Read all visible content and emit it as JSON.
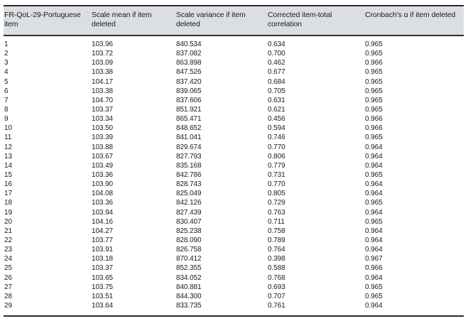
{
  "table": {
    "columns": [
      "FR-QoL-29-Portuguese item",
      "Scale mean if item deleted",
      "Scale variance if item deleted",
      "Corrected item-total correlation",
      "Cronbach's α if item deleted"
    ],
    "rows": [
      [
        "1",
        "103.96",
        "840.534",
        "0.634",
        "0.965"
      ],
      [
        "2",
        "103.72",
        "837.082",
        "0.700",
        "0.965"
      ],
      [
        "3",
        "103.09",
        "863.898",
        "0.462",
        "0.966"
      ],
      [
        "4",
        "103.38",
        "847.526",
        "0.677",
        "0.965"
      ],
      [
        "5",
        "104.17",
        "837.420",
        "0.684",
        "0.965"
      ],
      [
        "6",
        "103.38",
        "839.065",
        "0.705",
        "0.965"
      ],
      [
        "7",
        "104.70",
        "837.606",
        "0.631",
        "0.965"
      ],
      [
        "8",
        "103.37",
        "851.921",
        "0.621",
        "0.965"
      ],
      [
        "9",
        "103.34",
        "865.471",
        "0.456",
        "0.966"
      ],
      [
        "10",
        "103.50",
        "848.652",
        "0.594",
        "0.966"
      ],
      [
        "11",
        "103.39",
        "841.041",
        "0.746",
        "0.965"
      ],
      [
        "12",
        "103.88",
        "829.674",
        "0.770",
        "0.964"
      ],
      [
        "13",
        "103.67",
        "827.793",
        "0.806",
        "0.964"
      ],
      [
        "14",
        "103.49",
        "835.168",
        "0.779",
        "0.964"
      ],
      [
        "15",
        "103.36",
        "842.786",
        "0.731",
        "0.965"
      ],
      [
        "16",
        "103.90",
        "828.743",
        "0.770",
        "0.964"
      ],
      [
        "17",
        "104.08",
        "825.049",
        "0.805",
        "0.964"
      ],
      [
        "18",
        "103.36",
        "842.126",
        "0.729",
        "0.965"
      ],
      [
        "19",
        "103.94",
        "827.439",
        "0.763",
        "0.964"
      ],
      [
        "20",
        "104.16",
        "830.407",
        "0.711",
        "0.965"
      ],
      [
        "21",
        "104.27",
        "825.238",
        "0.758",
        "0.964"
      ],
      [
        "22",
        "103.77",
        "828.090",
        "0.789",
        "0.964"
      ],
      [
        "23",
        "103.91",
        "826.758",
        "0.764",
        "0.964"
      ],
      [
        "24",
        "103.18",
        "870.412",
        "0.398",
        "0.967"
      ],
      [
        "25",
        "103.37",
        "852.355",
        "0.588",
        "0.966"
      ],
      [
        "26",
        "103.65",
        "834.052",
        "0.768",
        "0.964"
      ],
      [
        "27",
        "103.75",
        "840.881",
        "0.693",
        "0.965"
      ],
      [
        "28",
        "103.51",
        "844.300",
        "0.707",
        "0.965"
      ],
      [
        "29",
        "103.64",
        "833.735",
        "0.761",
        "0.964"
      ]
    ]
  },
  "colors": {
    "header_bg": "#dbdfe4",
    "rule": "#2b2b2b",
    "text": "#1b1b1b"
  }
}
